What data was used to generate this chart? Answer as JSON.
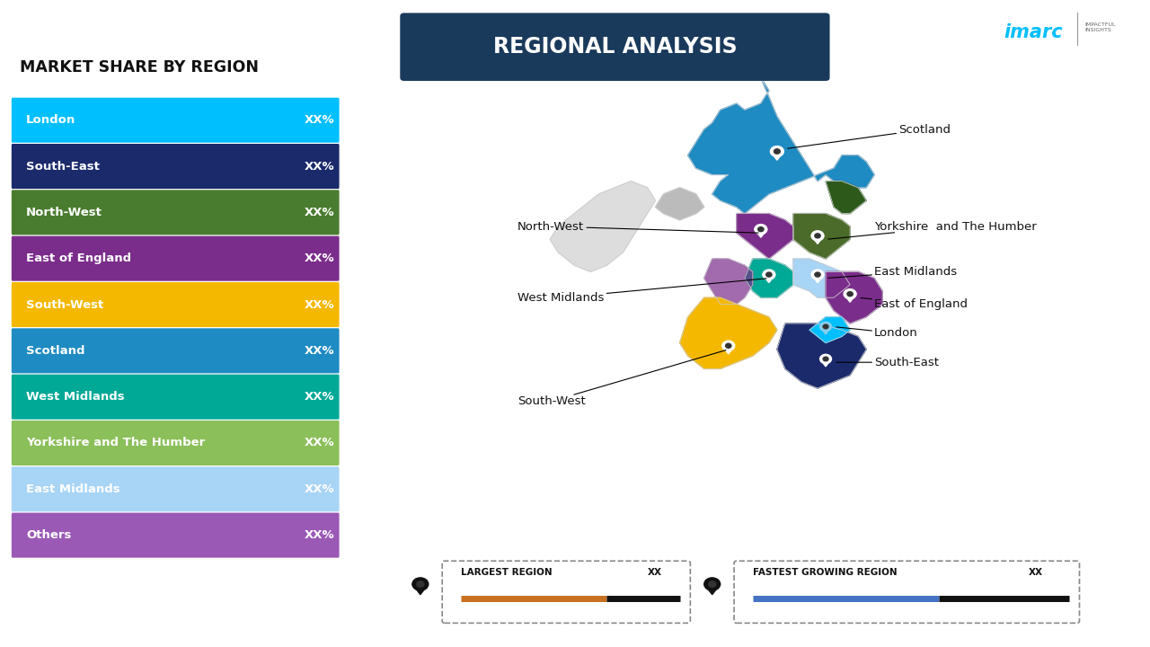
{
  "title": "REGIONAL ANALYSIS",
  "subtitle": "MARKET SHARE BY REGION",
  "background_color": "#FFFFFF",
  "title_bg_color": "#1a3a5c",
  "regions": [
    {
      "name": "London",
      "color": "#00BFFF",
      "value": "XX%"
    },
    {
      "name": "South-East",
      "color": "#1B2A6B",
      "value": "XX%"
    },
    {
      "name": "North-West",
      "color": "#4A7C2F",
      "value": "XX%"
    },
    {
      "name": "East of England",
      "color": "#7B2D8B",
      "value": "XX%"
    },
    {
      "name": "South-West",
      "color": "#F5B800",
      "value": "XX%"
    },
    {
      "name": "Scotland",
      "color": "#1E8BC3",
      "value": "XX%"
    },
    {
      "name": "West Midlands",
      "color": "#00A896",
      "value": "XX%"
    },
    {
      "name": "Yorkshire and The Humber",
      "color": "#8BBF5A",
      "value": "XX%"
    },
    {
      "name": "East Midlands",
      "color": "#A8D4F5",
      "value": "XX%"
    },
    {
      "name": "Others",
      "color": "#9B59B6",
      "value": "XX%"
    }
  ],
  "largest_region_color": "#C97020",
  "fastest_growing_color": "#4472C4",
  "imarc_cyan": "#00BFFF"
}
